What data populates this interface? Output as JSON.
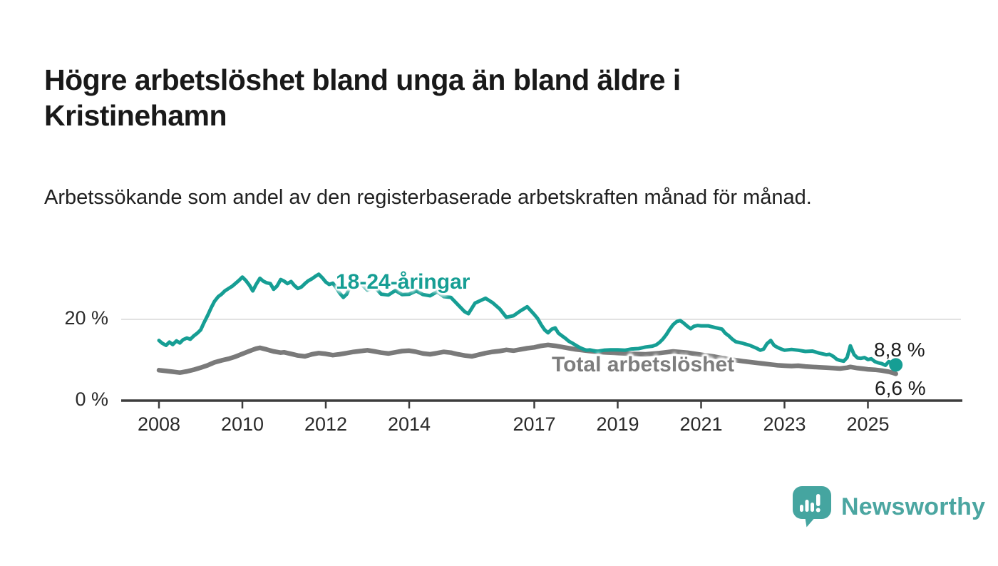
{
  "page": {
    "title": "Högre arbetslöshet bland unga än bland äldre i Kristinehamn",
    "subtitle": "Arbetssökande som andel av den registerbaserade arbetskraften månad för månad."
  },
  "footer": {
    "brand": "Newsworthy",
    "brand_color": "#4ba6a1"
  },
  "colors": {
    "young_line": "#169e94",
    "total_line": "#7a7a7a",
    "total_label": "#7d7d7d",
    "gridline": "#d9d9d9",
    "axis": "#3d3d3d",
    "tick_text": "#2b2b2b",
    "background": "#ffffff"
  },
  "chart_data": {
    "type": "line",
    "title": "Högre arbetslöshet bland unga än bland äldre i Kristinehamn",
    "subtitle": "Arbetssökande som andel av den registerbaserade arbetskraften månad för månad.",
    "unit": "%",
    "xlim": [
      2006.9,
      2027.3
    ],
    "ylim": [
      0,
      33
    ],
    "grid": "horizontal-20-only",
    "grid_values": [
      20
    ],
    "legend": "inline-series-labels",
    "x_ticks": [
      2008,
      2010,
      2012,
      2014,
      2017,
      2019,
      2021,
      2023,
      2025
    ],
    "y_ticks": [
      {
        "value": 0,
        "label": "0 %"
      },
      {
        "value": 20,
        "label": "20 %"
      }
    ],
    "series": [
      {
        "name": "18-24-åringar",
        "color": "#169e94",
        "line_width": 5,
        "end_marker": true,
        "end_label": "8,8 %",
        "end_value": 8.8,
        "values": [
          [
            2008.0,
            14.8
          ],
          [
            2008.08,
            14.1
          ],
          [
            2008.17,
            13.6
          ],
          [
            2008.25,
            14.4
          ],
          [
            2008.33,
            13.8
          ],
          [
            2008.42,
            14.7
          ],
          [
            2008.5,
            14.2
          ],
          [
            2008.58,
            15.0
          ],
          [
            2008.67,
            15.4
          ],
          [
            2008.75,
            15.1
          ],
          [
            2008.83,
            15.9
          ],
          [
            2008.92,
            16.6
          ],
          [
            2009.0,
            17.4
          ],
          [
            2009.08,
            19.2
          ],
          [
            2009.17,
            21.0
          ],
          [
            2009.25,
            22.8
          ],
          [
            2009.33,
            24.4
          ],
          [
            2009.42,
            25.6
          ],
          [
            2009.5,
            26.2
          ],
          [
            2009.58,
            27.0
          ],
          [
            2009.67,
            27.6
          ],
          [
            2009.75,
            28.1
          ],
          [
            2009.83,
            28.8
          ],
          [
            2009.92,
            29.6
          ],
          [
            2010.0,
            30.4
          ],
          [
            2010.08,
            29.6
          ],
          [
            2010.17,
            28.4
          ],
          [
            2010.25,
            27.0
          ],
          [
            2010.33,
            28.6
          ],
          [
            2010.42,
            30.1
          ],
          [
            2010.5,
            29.4
          ],
          [
            2010.58,
            29.0
          ],
          [
            2010.67,
            28.8
          ],
          [
            2010.75,
            27.4
          ],
          [
            2010.83,
            28.2
          ],
          [
            2010.92,
            29.8
          ],
          [
            2011.0,
            29.4
          ],
          [
            2011.08,
            28.8
          ],
          [
            2011.17,
            29.3
          ],
          [
            2011.25,
            28.3
          ],
          [
            2011.33,
            27.6
          ],
          [
            2011.42,
            28.0
          ],
          [
            2011.5,
            28.8
          ],
          [
            2011.58,
            29.5
          ],
          [
            2011.67,
            30.0
          ],
          [
            2011.75,
            30.6
          ],
          [
            2011.83,
            31.1
          ],
          [
            2011.92,
            30.2
          ],
          [
            2012.0,
            29.2
          ],
          [
            2012.08,
            28.6
          ],
          [
            2012.17,
            28.9
          ],
          [
            2012.25,
            27.8
          ],
          [
            2012.33,
            26.5
          ],
          [
            2012.42,
            25.4
          ],
          [
            2012.5,
            26.2
          ],
          [
            2012.58,
            28.0
          ],
          [
            2012.67,
            29.6
          ],
          [
            2012.75,
            30.0
          ],
          [
            2012.83,
            29.0
          ],
          [
            2012.92,
            28.0
          ],
          [
            2013.0,
            27.2
          ],
          [
            2013.17,
            28.0
          ],
          [
            2013.33,
            26.2
          ],
          [
            2013.5,
            26.0
          ],
          [
            2013.67,
            27.1
          ],
          [
            2013.83,
            26.1
          ],
          [
            2014.0,
            26.2
          ],
          [
            2014.17,
            27.0
          ],
          [
            2014.33,
            26.1
          ],
          [
            2014.5,
            25.8
          ],
          [
            2014.67,
            26.8
          ],
          [
            2014.83,
            25.6
          ],
          [
            2015.0,
            25.4
          ],
          [
            2015.17,
            23.6
          ],
          [
            2015.33,
            21.9
          ],
          [
            2015.42,
            21.4
          ],
          [
            2015.58,
            24.0
          ],
          [
            2015.83,
            25.2
          ],
          [
            2016.0,
            24.1
          ],
          [
            2016.17,
            22.6
          ],
          [
            2016.33,
            20.5
          ],
          [
            2016.5,
            20.9
          ],
          [
            2016.67,
            22.1
          ],
          [
            2016.83,
            23.1
          ],
          [
            2017.0,
            21.2
          ],
          [
            2017.08,
            20.2
          ],
          [
            2017.17,
            18.6
          ],
          [
            2017.25,
            17.4
          ],
          [
            2017.33,
            16.7
          ],
          [
            2017.42,
            17.6
          ],
          [
            2017.5,
            17.9
          ],
          [
            2017.58,
            16.6
          ],
          [
            2017.67,
            15.9
          ],
          [
            2017.75,
            15.3
          ],
          [
            2017.83,
            14.6
          ],
          [
            2017.92,
            14.1
          ],
          [
            2018.0,
            13.6
          ],
          [
            2018.08,
            13.1
          ],
          [
            2018.17,
            12.7
          ],
          [
            2018.25,
            12.4
          ],
          [
            2018.33,
            12.5
          ],
          [
            2018.5,
            12.1
          ],
          [
            2018.67,
            12.4
          ],
          [
            2018.83,
            12.5
          ],
          [
            2019.0,
            12.5
          ],
          [
            2019.17,
            12.4
          ],
          [
            2019.33,
            12.7
          ],
          [
            2019.5,
            12.8
          ],
          [
            2019.67,
            13.2
          ],
          [
            2019.83,
            13.4
          ],
          [
            2019.92,
            13.7
          ],
          [
            2020.0,
            14.3
          ],
          [
            2020.08,
            15.1
          ],
          [
            2020.17,
            16.3
          ],
          [
            2020.25,
            17.6
          ],
          [
            2020.33,
            18.7
          ],
          [
            2020.42,
            19.5
          ],
          [
            2020.5,
            19.7
          ],
          [
            2020.58,
            19.1
          ],
          [
            2020.67,
            18.3
          ],
          [
            2020.75,
            17.7
          ],
          [
            2020.83,
            18.3
          ],
          [
            2020.92,
            18.5
          ],
          [
            2021.0,
            18.4
          ],
          [
            2021.17,
            18.4
          ],
          [
            2021.33,
            18.0
          ],
          [
            2021.5,
            17.6
          ],
          [
            2021.58,
            16.6
          ],
          [
            2021.67,
            15.9
          ],
          [
            2021.75,
            15.1
          ],
          [
            2021.83,
            14.5
          ],
          [
            2021.92,
            14.3
          ],
          [
            2022.0,
            14.1
          ],
          [
            2022.17,
            13.6
          ],
          [
            2022.33,
            12.9
          ],
          [
            2022.42,
            12.4
          ],
          [
            2022.5,
            12.7
          ],
          [
            2022.58,
            14.0
          ],
          [
            2022.67,
            14.8
          ],
          [
            2022.75,
            13.6
          ],
          [
            2022.83,
            13.1
          ],
          [
            2022.92,
            12.7
          ],
          [
            2023.0,
            12.4
          ],
          [
            2023.17,
            12.6
          ],
          [
            2023.33,
            12.4
          ],
          [
            2023.5,
            12.1
          ],
          [
            2023.67,
            12.2
          ],
          [
            2023.83,
            11.7
          ],
          [
            2024.0,
            11.3
          ],
          [
            2024.08,
            11.4
          ],
          [
            2024.17,
            10.9
          ],
          [
            2024.25,
            10.2
          ],
          [
            2024.33,
            9.9
          ],
          [
            2024.42,
            9.7
          ],
          [
            2024.5,
            10.6
          ],
          [
            2024.58,
            13.5
          ],
          [
            2024.67,
            11.3
          ],
          [
            2024.75,
            10.5
          ],
          [
            2024.83,
            10.4
          ],
          [
            2024.92,
            10.6
          ],
          [
            2025.0,
            10.1
          ],
          [
            2025.08,
            10.3
          ],
          [
            2025.17,
            9.6
          ],
          [
            2025.25,
            9.3
          ],
          [
            2025.33,
            9.1
          ],
          [
            2025.42,
            8.7
          ],
          [
            2025.5,
            9.6
          ],
          [
            2025.58,
            9.3
          ],
          [
            2025.67,
            8.8
          ]
        ]
      },
      {
        "name": "Total arbetslöshet",
        "color": "#7a7a7a",
        "line_width": 6.5,
        "end_marker": false,
        "end_label": "6,6 %",
        "end_value": 6.6,
        "values": [
          [
            2008.0,
            7.5
          ],
          [
            2008.17,
            7.3
          ],
          [
            2008.33,
            7.1
          ],
          [
            2008.5,
            6.9
          ],
          [
            2008.67,
            7.2
          ],
          [
            2008.83,
            7.6
          ],
          [
            2009.0,
            8.1
          ],
          [
            2009.17,
            8.7
          ],
          [
            2009.33,
            9.4
          ],
          [
            2009.5,
            9.9
          ],
          [
            2009.67,
            10.3
          ],
          [
            2009.83,
            10.8
          ],
          [
            2010.0,
            11.5
          ],
          [
            2010.17,
            12.2
          ],
          [
            2010.33,
            12.8
          ],
          [
            2010.42,
            13.0
          ],
          [
            2010.58,
            12.6
          ],
          [
            2010.75,
            12.1
          ],
          [
            2010.92,
            11.8
          ],
          [
            2011.0,
            11.9
          ],
          [
            2011.17,
            11.5
          ],
          [
            2011.33,
            11.1
          ],
          [
            2011.5,
            10.9
          ],
          [
            2011.67,
            11.4
          ],
          [
            2011.83,
            11.7
          ],
          [
            2012.0,
            11.5
          ],
          [
            2012.17,
            11.2
          ],
          [
            2012.33,
            11.4
          ],
          [
            2012.5,
            11.7
          ],
          [
            2012.67,
            12.0
          ],
          [
            2012.83,
            12.2
          ],
          [
            2013.0,
            12.4
          ],
          [
            2013.17,
            12.1
          ],
          [
            2013.33,
            11.8
          ],
          [
            2013.5,
            11.6
          ],
          [
            2013.67,
            11.9
          ],
          [
            2013.83,
            12.2
          ],
          [
            2014.0,
            12.3
          ],
          [
            2014.17,
            12.0
          ],
          [
            2014.33,
            11.6
          ],
          [
            2014.5,
            11.4
          ],
          [
            2014.67,
            11.7
          ],
          [
            2014.83,
            12.0
          ],
          [
            2015.0,
            11.8
          ],
          [
            2015.17,
            11.4
          ],
          [
            2015.33,
            11.1
          ],
          [
            2015.5,
            10.9
          ],
          [
            2015.67,
            11.3
          ],
          [
            2015.83,
            11.7
          ],
          [
            2016.0,
            12.0
          ],
          [
            2016.17,
            12.2
          ],
          [
            2016.33,
            12.5
          ],
          [
            2016.5,
            12.3
          ],
          [
            2016.67,
            12.6
          ],
          [
            2016.83,
            12.9
          ],
          [
            2017.0,
            13.1
          ],
          [
            2017.17,
            13.5
          ],
          [
            2017.33,
            13.7
          ],
          [
            2017.5,
            13.5
          ],
          [
            2017.67,
            13.2
          ],
          [
            2017.83,
            12.9
          ],
          [
            2018.0,
            12.6
          ],
          [
            2018.33,
            12.2
          ],
          [
            2018.67,
            11.9
          ],
          [
            2019.0,
            11.7
          ],
          [
            2019.33,
            11.5
          ],
          [
            2019.67,
            11.4
          ],
          [
            2020.0,
            11.7
          ],
          [
            2020.33,
            12.1
          ],
          [
            2020.67,
            11.8
          ],
          [
            2021.0,
            11.3
          ],
          [
            2021.33,
            10.8
          ],
          [
            2021.67,
            10.2
          ],
          [
            2022.0,
            9.7
          ],
          [
            2022.17,
            9.5
          ],
          [
            2022.33,
            9.3
          ],
          [
            2022.5,
            9.1
          ],
          [
            2022.67,
            8.9
          ],
          [
            2022.83,
            8.7
          ],
          [
            2023.0,
            8.6
          ],
          [
            2023.17,
            8.5
          ],
          [
            2023.33,
            8.6
          ],
          [
            2023.5,
            8.4
          ],
          [
            2023.67,
            8.3
          ],
          [
            2023.83,
            8.2
          ],
          [
            2024.0,
            8.1
          ],
          [
            2024.17,
            8.0
          ],
          [
            2024.33,
            7.9
          ],
          [
            2024.5,
            8.1
          ],
          [
            2024.58,
            8.3
          ],
          [
            2024.75,
            8.0
          ],
          [
            2024.92,
            7.8
          ],
          [
            2025.0,
            7.7
          ],
          [
            2025.17,
            7.6
          ],
          [
            2025.33,
            7.4
          ],
          [
            2025.5,
            7.1
          ],
          [
            2025.58,
            6.9
          ],
          [
            2025.67,
            6.6
          ]
        ]
      }
    ]
  }
}
